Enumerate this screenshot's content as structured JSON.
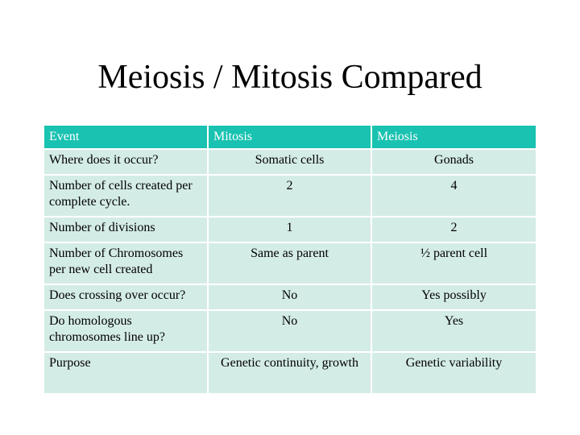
{
  "slide": {
    "title": "Meiosis / Mitosis Compared"
  },
  "table": {
    "headers": [
      "Event",
      "Mitosis",
      "Meiosis"
    ],
    "rows": [
      {
        "event": "Where does it occur?",
        "mitosis": "Somatic cells",
        "meiosis": "Gonads"
      },
      {
        "event": "Number  of cells created per complete cycle.",
        "mitosis": "2",
        "meiosis": "4"
      },
      {
        "event": "Number of divisions",
        "mitosis": "1",
        "meiosis": "2"
      },
      {
        "event": "Number of Chromosomes per new cell created",
        "mitosis": "Same as parent",
        "meiosis": "½ parent cell"
      },
      {
        "event": "Does crossing over occur?",
        "mitosis": "No",
        "meiosis": "Yes possibly"
      },
      {
        "event": "Do homologous chromosomes line up?",
        "mitosis": "No",
        "meiosis": "Yes"
      },
      {
        "event": "Purpose",
        "mitosis": "Genetic continuity, growth",
        "meiosis": "Genetic variability"
      }
    ]
  },
  "colors": {
    "header_bg": "#19c2b1",
    "cell_bg": "#d4ece6",
    "header_text": "#ffffff"
  }
}
